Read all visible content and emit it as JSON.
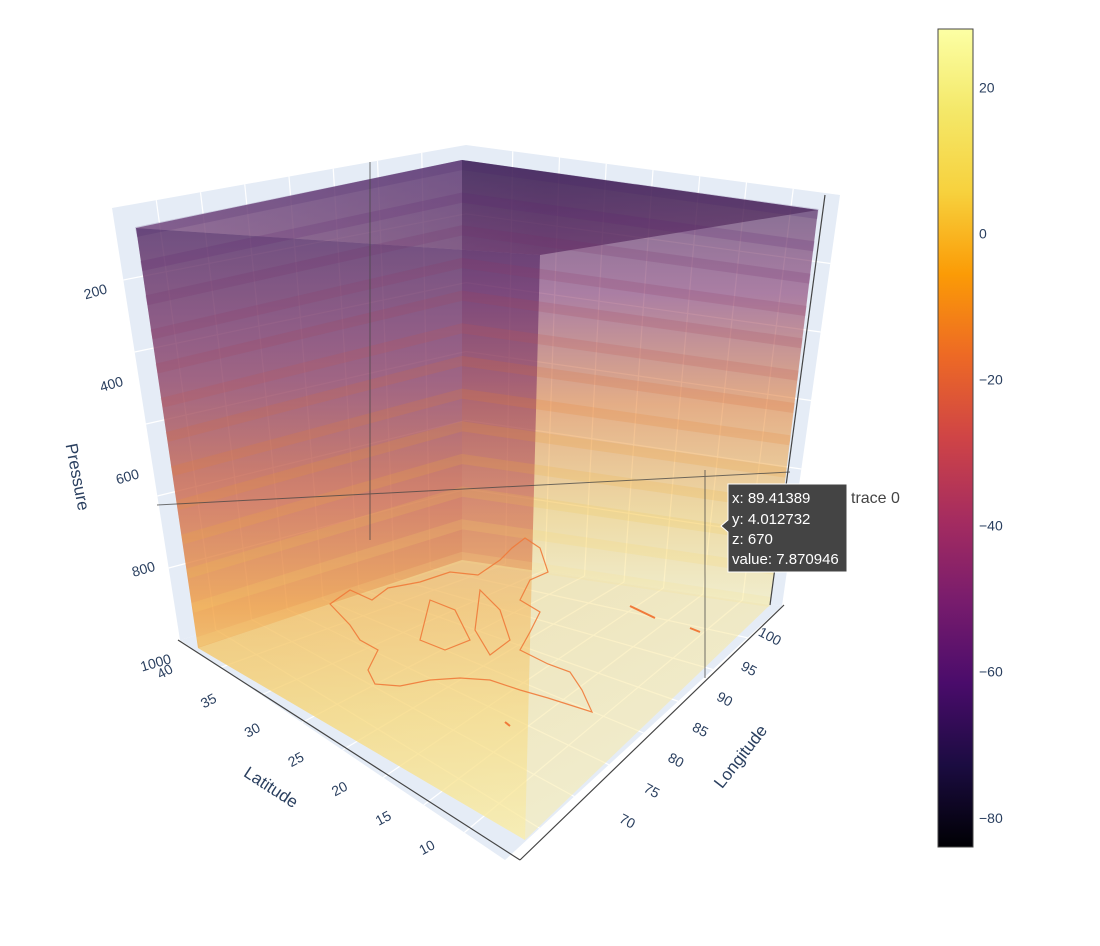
{
  "chart_data": {
    "type": "volume",
    "axes": {
      "x": {
        "title": "Longitude",
        "range": [
          67,
          102
        ],
        "ticks": [
          70,
          75,
          80,
          85,
          90,
          95,
          100
        ]
      },
      "y": {
        "title": "Latitude",
        "range": [
          5,
          40
        ],
        "ticks": [
          10,
          15,
          20,
          25,
          30,
          35,
          40
        ]
      },
      "z": {
        "title": "Pressure",
        "range": [
          1000,
          100
        ],
        "reversed": true,
        "ticks": [
          200,
          400,
          600,
          800,
          1000
        ]
      }
    },
    "colorbar": {
      "colorscale": "Inferno",
      "range": [
        -84,
        28
      ],
      "ticks": [
        20,
        0,
        -20,
        -40,
        -60,
        -80
      ],
      "tick_labels": [
        "20",
        "0",
        "−20",
        "−40",
        "−60",
        "−80"
      ]
    },
    "hover": {
      "trace_name": "trace 0",
      "lines": [
        "x: 89.41389",
        "y: 4.012732",
        "z: 670",
        "value: 7.870946"
      ]
    },
    "annotations": [
      "country boundary outline on the 1000 hPa plane"
    ]
  }
}
